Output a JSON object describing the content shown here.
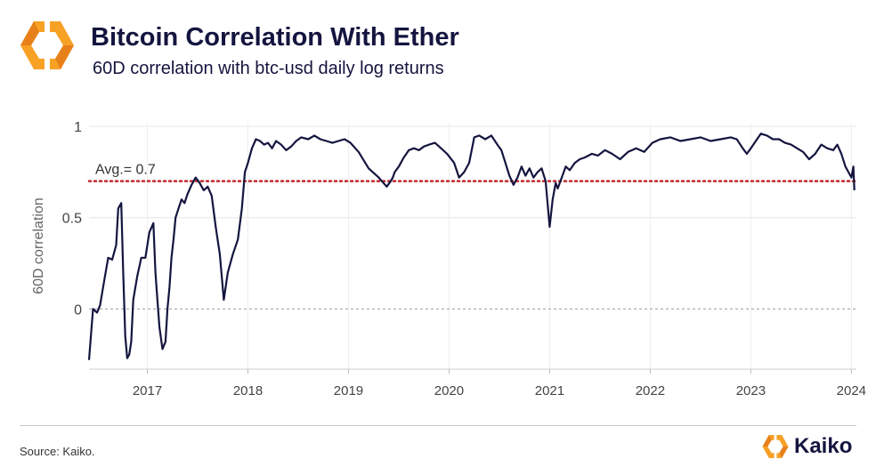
{
  "header": {
    "title": "Bitcoin Correlation With Ether",
    "subtitle": "60D correlation with btc-usd daily log returns"
  },
  "footer": {
    "source": "Source: Kaiko.",
    "brand": "Kaiko"
  },
  "colors": {
    "line": "#14153f",
    "average_line": "#c0282d",
    "logo_orange": "#f7a125",
    "logo_dark_orange": "#e8801a"
  },
  "icons": {
    "header_logo": "kaiko-hexagon-logo-icon",
    "footer_logo": "kaiko-hexagon-logo-icon"
  },
  "chart_data": {
    "type": "line",
    "title": "Bitcoin Correlation With Ether",
    "subtitle": "60D correlation with btc-usd daily log returns",
    "xlabel": "",
    "ylabel": "60D correlation",
    "xlim": [
      2016.42,
      2024.05
    ],
    "ylim": [
      -0.33,
      1.02
    ],
    "yticks": [
      0,
      0.5,
      1
    ],
    "ytick_labels": [
      "0",
      "0.5",
      "1"
    ],
    "xticks": [
      2017,
      2018,
      2019,
      2020,
      2021,
      2022,
      2023,
      2024
    ],
    "xtick_labels": [
      "2017",
      "2018",
      "2019",
      "2020",
      "2021",
      "2022",
      "2023",
      "2024"
    ],
    "grid": true,
    "legend": "none",
    "reference_line": {
      "value": 0.7,
      "label": "Avg.= 0.7"
    },
    "series": [
      {
        "x": [
          2016.42,
          2016.46,
          2016.5,
          2016.53,
          2016.57,
          2016.61,
          2016.65,
          2016.69,
          2016.71,
          2016.74,
          2016.76,
          2016.78,
          2016.8,
          2016.82,
          2016.84,
          2016.86,
          2016.9,
          2016.94,
          2016.98,
          2017.02,
          2017.06,
          2017.08,
          2017.1,
          2017.12,
          2017.15,
          2017.18,
          2017.2,
          2017.22,
          2017.24,
          2017.26,
          2017.28,
          2017.31,
          2017.34,
          2017.37,
          2017.4,
          2017.44,
          2017.48,
          2017.52,
          2017.56,
          2017.6,
          2017.64,
          2017.68,
          2017.72,
          2017.76,
          2017.8,
          2017.85,
          2017.9,
          2017.94,
          2017.97,
          2018.0,
          2018.04,
          2018.08,
          2018.12,
          2018.16,
          2018.2,
          2018.24,
          2018.28,
          2018.33,
          2018.38,
          2018.43,
          2018.48,
          2018.53,
          2018.6,
          2018.66,
          2018.72,
          2018.78,
          2018.84,
          2018.9,
          2018.96,
          2019.02,
          2019.1,
          2019.2,
          2019.3,
          2019.38,
          2019.42,
          2019.44,
          2019.46,
          2019.5,
          2019.55,
          2019.6,
          2019.65,
          2019.7,
          2019.75,
          2019.8,
          2019.86,
          2019.92,
          2019.98,
          2020.05,
          2020.1,
          2020.15,
          2020.2,
          2020.25,
          2020.3,
          2020.36,
          2020.42,
          2020.48,
          2020.52,
          2020.56,
          2020.6,
          2020.64,
          2020.68,
          2020.72,
          2020.76,
          2020.8,
          2020.84,
          2020.88,
          2020.92,
          2020.96,
          2021.0,
          2021.03,
          2021.06,
          2021.08,
          2021.12,
          2021.16,
          2021.2,
          2021.25,
          2021.3,
          2021.35,
          2021.42,
          2021.48,
          2021.55,
          2021.62,
          2021.7,
          2021.78,
          2021.86,
          2021.94,
          2022.02,
          2022.1,
          2022.2,
          2022.3,
          2022.4,
          2022.5,
          2022.6,
          2022.7,
          2022.8,
          2022.86,
          2022.92,
          2022.96,
          2023.0,
          2023.05,
          2023.1,
          2023.16,
          2023.22,
          2023.28,
          2023.34,
          2023.4,
          2023.46,
          2023.52,
          2023.58,
          2023.64,
          2023.7,
          2023.76,
          2023.82,
          2023.86,
          2023.9,
          2023.94,
          2023.97,
          2024.0,
          2024.02,
          2024.03
        ],
        "y": [
          -0.28,
          0.0,
          -0.02,
          0.02,
          0.15,
          0.28,
          0.27,
          0.35,
          0.55,
          0.58,
          0.2,
          -0.15,
          -0.27,
          -0.25,
          -0.18,
          0.05,
          0.18,
          0.28,
          0.28,
          0.42,
          0.47,
          0.2,
          0.05,
          -0.1,
          -0.22,
          -0.18,
          0.0,
          0.12,
          0.28,
          0.38,
          0.5,
          0.55,
          0.6,
          0.58,
          0.63,
          0.68,
          0.72,
          0.69,
          0.65,
          0.67,
          0.62,
          0.45,
          0.3,
          0.05,
          0.2,
          0.3,
          0.38,
          0.55,
          0.75,
          0.8,
          0.88,
          0.93,
          0.92,
          0.9,
          0.91,
          0.88,
          0.92,
          0.9,
          0.87,
          0.89,
          0.92,
          0.94,
          0.93,
          0.95,
          0.93,
          0.92,
          0.91,
          0.92,
          0.93,
          0.91,
          0.86,
          0.77,
          0.72,
          0.67,
          0.7,
          0.72,
          0.75,
          0.78,
          0.83,
          0.87,
          0.88,
          0.87,
          0.89,
          0.9,
          0.91,
          0.88,
          0.85,
          0.8,
          0.72,
          0.75,
          0.8,
          0.94,
          0.95,
          0.93,
          0.95,
          0.9,
          0.87,
          0.8,
          0.73,
          0.68,
          0.72,
          0.78,
          0.73,
          0.77,
          0.72,
          0.75,
          0.77,
          0.7,
          0.45,
          0.6,
          0.69,
          0.66,
          0.72,
          0.78,
          0.76,
          0.8,
          0.82,
          0.83,
          0.85,
          0.84,
          0.87,
          0.85,
          0.82,
          0.86,
          0.88,
          0.86,
          0.91,
          0.93,
          0.94,
          0.92,
          0.93,
          0.94,
          0.92,
          0.93,
          0.94,
          0.93,
          0.88,
          0.85,
          0.88,
          0.92,
          0.96,
          0.95,
          0.93,
          0.93,
          0.91,
          0.9,
          0.88,
          0.86,
          0.82,
          0.85,
          0.9,
          0.88,
          0.87,
          0.9,
          0.85,
          0.78,
          0.75,
          0.72,
          0.78,
          0.65
        ]
      }
    ]
  }
}
